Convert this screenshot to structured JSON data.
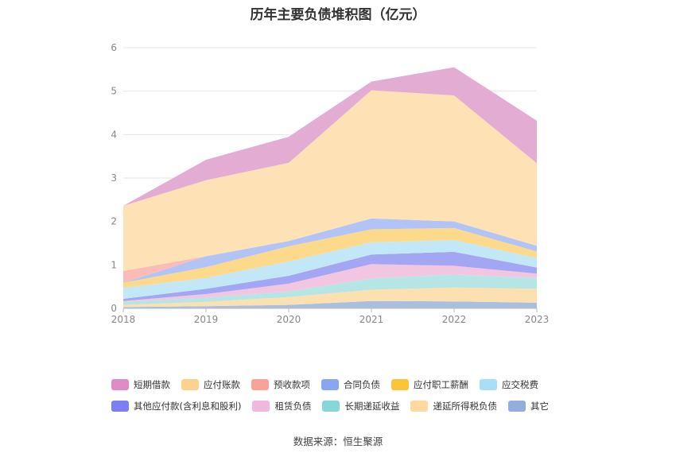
{
  "chart_data": {
    "type": "area",
    "title": "历年主要负债堆积图（亿元）",
    "source_note": "数据来源：恒生聚源",
    "x": [
      "2018",
      "2019",
      "2020",
      "2021",
      "2022",
      "2023"
    ],
    "yticks": [
      "0",
      "1",
      "2",
      "3",
      "4",
      "5",
      "6"
    ],
    "ylim": [
      0,
      6
    ],
    "stacked": true,
    "grid": "horizontal",
    "legend_position": "bottom",
    "series": [
      {
        "name": "其它",
        "color": "#a9bfe0",
        "values": [
          0.03,
          0.05,
          0.08,
          0.17,
          0.16,
          0.13
        ]
      },
      {
        "name": "递延所得税负债",
        "color": "#fde0b0",
        "values": [
          0.05,
          0.1,
          0.18,
          0.26,
          0.32,
          0.32
        ]
      },
      {
        "name": "长期递延收益",
        "color": "#b6e5e5",
        "values": [
          0.07,
          0.1,
          0.13,
          0.26,
          0.3,
          0.25
        ]
      },
      {
        "name": "租赁负债",
        "color": "#f2c6e0",
        "values": [
          0.02,
          0.08,
          0.18,
          0.33,
          0.2,
          0.1
        ]
      },
      {
        "name": "其他应付款(含利息和股利)",
        "color": "#a3a6f2",
        "values": [
          0.05,
          0.12,
          0.18,
          0.22,
          0.32,
          0.14
        ]
      },
      {
        "name": "应交税费",
        "color": "#c2e8f8",
        "values": [
          0.25,
          0.25,
          0.33,
          0.28,
          0.27,
          0.22
        ]
      },
      {
        "name": "应付职工薪酬",
        "color": "#fdd98c",
        "values": [
          0.12,
          0.25,
          0.35,
          0.3,
          0.28,
          0.15
        ]
      },
      {
        "name": "合同负债",
        "color": "#b2c4f6",
        "values": [
          0.0,
          0.25,
          0.12,
          0.25,
          0.15,
          0.13
        ]
      },
      {
        "name": "预收款项",
        "color": "#fbbcb7",
        "values": [
          0.27,
          0.0,
          0.0,
          0.0,
          0.0,
          0.0
        ]
      },
      {
        "name": "应付账款",
        "color": "#fee2b5",
        "values": [
          1.5,
          1.75,
          1.8,
          2.95,
          2.9,
          1.9
        ]
      },
      {
        "name": "短期借款",
        "color": "#e3acd3",
        "values": [
          0.0,
          0.47,
          0.6,
          0.2,
          0.65,
          0.98
        ]
      }
    ],
    "legend": [
      {
        "name": "短期借款",
        "color": "#e08cc4"
      },
      {
        "name": "应付账款",
        "color": "#fdd28e"
      },
      {
        "name": "预收款项",
        "color": "#f9a29a"
      },
      {
        "name": "合同负债",
        "color": "#8aa6f0"
      },
      {
        "name": "应付职工薪酬",
        "color": "#fcc437"
      },
      {
        "name": "应交税费",
        "color": "#a9def8"
      },
      {
        "name": "其他应付款(含利息和股利)",
        "color": "#7d7ff0"
      },
      {
        "name": "租赁负债",
        "color": "#efb8dc"
      },
      {
        "name": "长期递延收益",
        "color": "#86d7d7"
      },
      {
        "name": "递延所得税负债",
        "color": "#fdd9a0"
      },
      {
        "name": "其它",
        "color": "#93addc"
      }
    ]
  }
}
